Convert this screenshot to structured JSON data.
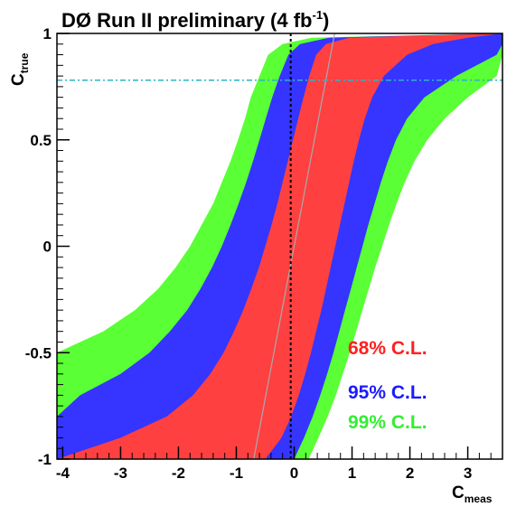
{
  "chart_data": {
    "type": "area",
    "title": "DØ Run II preliminary (4 fb",
    "title_sup": "-1",
    "title_close": ")",
    "xlabel": "C",
    "xlabel_sub": "meas",
    "ylabel": "C",
    "ylabel_sub": "true",
    "xlim": [
      -4.1,
      3.6
    ],
    "ylim": [
      -1,
      1
    ],
    "x_ticks": [
      -4,
      -3,
      -2,
      -1,
      0,
      1,
      2,
      3
    ],
    "x_tick_labels": [
      "-4",
      "-3",
      "-2",
      "-1",
      "0",
      "1",
      "2",
      "3"
    ],
    "y_ticks": [
      -1,
      -0.5,
      0,
      0.5,
      1
    ],
    "y_tick_labels": [
      "-1",
      "-0.5",
      "0",
      "0.5",
      "1"
    ],
    "grid": false,
    "legend_position": "bottom-right",
    "colors": {
      "band_68": "#ff4040",
      "band_95": "#3535ff",
      "band_99": "#5aff35",
      "median_line": "#aaaaaa",
      "measured_line": "#000000",
      "true_value_line": "#2bb3c9"
    },
    "y_grid": [
      -1,
      -0.9,
      -0.8,
      -0.7,
      -0.6,
      -0.5,
      -0.4,
      -0.3,
      -0.2,
      -0.1,
      0,
      0.1,
      0.2,
      0.3,
      0.4,
      0.5,
      0.6,
      0.7,
      0.8,
      0.9,
      0.95,
      0.98,
      1
    ],
    "series": [
      {
        "name": "99% C.L.",
        "color": "#5aff35",
        "lower": [
          -4.1,
          -4.1,
          -4.1,
          -4.1,
          -4.1,
          -4.1,
          -3.3,
          -2.75,
          -2.35,
          -2.05,
          -1.8,
          -1.6,
          -1.4,
          -1.25,
          -1.1,
          -0.97,
          -0.85,
          -0.75,
          -0.6,
          -0.45,
          -0.2,
          0.3,
          3.6
        ],
        "upper": [
          0.25,
          0.42,
          0.58,
          0.72,
          0.84,
          0.96,
          1.07,
          1.18,
          1.29,
          1.4,
          1.52,
          1.64,
          1.77,
          1.91,
          2.08,
          2.3,
          2.6,
          3.0,
          3.5,
          3.6,
          3.6,
          3.6,
          3.6
        ]
      },
      {
        "name": "95% C.L.",
        "color": "#3535ff",
        "lower": [
          -4.1,
          -4.1,
          -4.1,
          -3.7,
          -3.0,
          -2.5,
          -2.15,
          -1.85,
          -1.62,
          -1.42,
          -1.25,
          -1.1,
          -0.96,
          -0.83,
          -0.71,
          -0.6,
          -0.49,
          -0.38,
          -0.25,
          -0.1,
          0.1,
          0.6,
          3.6
        ],
        "upper": [
          0.0,
          0.17,
          0.32,
          0.45,
          0.57,
          0.68,
          0.78,
          0.88,
          0.98,
          1.08,
          1.18,
          1.28,
          1.39,
          1.5,
          1.62,
          1.76,
          1.95,
          2.25,
          2.8,
          3.5,
          3.6,
          3.6,
          3.6
        ]
      },
      {
        "name": "68% C.L.",
        "color": "#ff4040",
        "lower": [
          -4.1,
          -3.0,
          -2.2,
          -1.75,
          -1.45,
          -1.22,
          -1.04,
          -0.88,
          -0.74,
          -0.61,
          -0.5,
          -0.39,
          -0.29,
          -0.2,
          -0.11,
          -0.02,
          0.07,
          0.16,
          0.26,
          0.38,
          0.55,
          0.95,
          3.6
        ],
        "upper": [
          -0.5,
          -0.22,
          -0.05,
          0.08,
          0.19,
          0.29,
          0.38,
          0.47,
          0.55,
          0.63,
          0.71,
          0.79,
          0.87,
          0.95,
          1.03,
          1.12,
          1.22,
          1.35,
          1.55,
          1.95,
          2.4,
          3.0,
          3.6
        ]
      }
    ],
    "median_line": {
      "x": [
        -0.7,
        -0.56,
        -0.42,
        -0.28,
        -0.14,
        0.0,
        0.14,
        0.28,
        0.42,
        0.56,
        0.7
      ],
      "y": [
        -1,
        -0.8,
        -0.6,
        -0.4,
        -0.2,
        0,
        0.2,
        0.4,
        0.6,
        0.8,
        1
      ]
    },
    "measured_value": -0.06,
    "true_value_line": 0.78
  },
  "legend": [
    {
      "label": "68% C.L.",
      "color": "#ff2020"
    },
    {
      "label": "95% C.L.",
      "color": "#1a1aff"
    },
    {
      "label": "99% C.L.",
      "color": "#33ee33"
    }
  ]
}
